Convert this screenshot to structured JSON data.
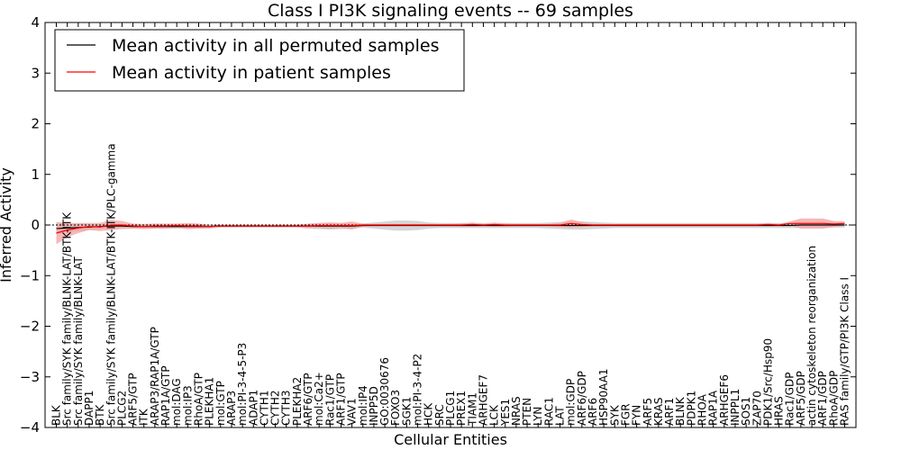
{
  "chart_data": {
    "type": "line",
    "title": "Class I PI3K signaling events -- 69 samples",
    "xlabel": "Cellular Entities",
    "ylabel": "Inferred Activity",
    "ylim": [
      -4,
      4
    ],
    "yticks": [
      -4,
      -3,
      -2,
      -1,
      0,
      1,
      2,
      3,
      4
    ],
    "ytick_labels": [
      "−4",
      "−3",
      "−2",
      "−1",
      "0",
      "1",
      "2",
      "3",
      "4"
    ],
    "grid": false,
    "legend_position": "top-left",
    "categories": [
      "BLK",
      "Src family/SYK family/BLNK-LAT/BTK-ITK",
      "Src family/SYK family/BLNK-LAT",
      "DAPP1",
      "BTK",
      "Src family/SYK family/BLNK-LAT/BTK-ITK/PLC-gamma",
      "PLCG2",
      "ARF5/GTP",
      "ITK",
      "ARAP3/RAP1A/GTP",
      "RAP1A/GTP",
      "mol:DAG",
      "mol:IP3",
      "RhoA/GTP",
      "PLEKHA1",
      "mol:GTP",
      "ARAP3",
      "mol:PI-3-4-5-P3",
      "ADAP1",
      "CYTH1",
      "CYTH2",
      "CYTH3",
      "PLEKHA2",
      "ARF6/GTP",
      "mol:Ca2+",
      "Rac1/GTP",
      "ARF1/GTP",
      "VAV1",
      "mol:IP4",
      "INPP5D",
      "GO:0030676",
      "FOXO3",
      "SGK1",
      "mol:PI-3-4-P2",
      "HCK",
      "SRC",
      "PLCG1",
      "PREX1",
      "TIAM1",
      "ARHGEF7",
      "LCK",
      "YES1",
      "NRAS",
      "PTEN",
      "LYN",
      "RAC1",
      "LAT",
      "mol:GDP",
      "ARF6/GDP",
      "ARF6",
      "HSP90AA1",
      "SYK",
      "FGR",
      "FYN",
      "ARF5",
      "KRAS",
      "ARF1",
      "BLNK",
      "PDPK1",
      "RHOA",
      "RAP1A",
      "ARHGEF6",
      "INPPL1",
      "SOS1",
      "ZAP70",
      "PDK1/Src/Hsp90",
      "HRAS",
      "Rac1/GDP",
      "ARF5/GDP",
      "actin cytoskeleton reorganization",
      "ARF1/GDP",
      "RhoA/GDP",
      "RAS family/GTP/PI3K Class I"
    ],
    "series": [
      {
        "name": "Mean activity in all permuted samples",
        "color": "#000000",
        "band_color": "#c8c8c8",
        "values": [
          -0.07,
          -0.06,
          -0.05,
          -0.04,
          -0.03,
          -0.02,
          -0.02,
          -0.03,
          -0.03,
          -0.03,
          -0.03,
          -0.03,
          -0.03,
          -0.03,
          -0.03,
          -0.02,
          -0.02,
          -0.02,
          -0.02,
          -0.02,
          -0.02,
          -0.02,
          -0.02,
          -0.02,
          -0.02,
          -0.02,
          -0.02,
          -0.02,
          -0.01,
          -0.01,
          -0.01,
          -0.01,
          -0.01,
          -0.01,
          -0.01,
          -0.01,
          -0.01,
          -0.01,
          -0.01,
          -0.01,
          -0.01,
          -0.01,
          -0.01,
          -0.01,
          -0.01,
          -0.01,
          -0.01,
          -0.01,
          -0.01,
          -0.01,
          -0.01,
          -0.01,
          -0.01,
          -0.01,
          -0.01,
          -0.01,
          -0.01,
          -0.01,
          -0.01,
          -0.01,
          -0.01,
          -0.01,
          -0.01,
          -0.01,
          -0.01,
          -0.01,
          -0.01,
          -0.01,
          0.0,
          0.0,
          0.0,
          0.0,
          0.0
        ],
        "band_halfwidth": [
          0.1,
          0.08,
          0.07,
          0.06,
          0.05,
          0.04,
          0.04,
          0.04,
          0.04,
          0.04,
          0.04,
          0.04,
          0.04,
          0.04,
          0.04,
          0.03,
          0.03,
          0.03,
          0.03,
          0.03,
          0.03,
          0.03,
          0.03,
          0.05,
          0.06,
          0.07,
          0.06,
          0.05,
          0.04,
          0.06,
          0.08,
          0.1,
          0.1,
          0.09,
          0.06,
          0.05,
          0.05,
          0.05,
          0.05,
          0.05,
          0.05,
          0.05,
          0.05,
          0.05,
          0.05,
          0.06,
          0.07,
          0.08,
          0.08,
          0.07,
          0.06,
          0.05,
          0.05,
          0.05,
          0.05,
          0.05,
          0.05,
          0.05,
          0.05,
          0.05,
          0.05,
          0.05,
          0.05,
          0.05,
          0.05,
          0.05,
          0.05,
          0.05,
          0.06,
          0.06,
          0.06,
          0.05,
          0.05
        ]
      },
      {
        "name": "Mean activity in patient samples",
        "color": "#ff0000",
        "band_color": "#f4a0a0",
        "values": [
          -0.16,
          -0.1,
          -0.06,
          -0.03,
          -0.04,
          0.0,
          0.0,
          -0.02,
          -0.03,
          -0.02,
          -0.02,
          -0.01,
          -0.02,
          -0.02,
          -0.03,
          -0.02,
          -0.02,
          -0.02,
          -0.02,
          -0.02,
          -0.02,
          -0.02,
          -0.02,
          -0.02,
          -0.01,
          -0.01,
          -0.01,
          -0.01,
          0.0,
          0.0,
          0.0,
          0.0,
          0.0,
          0.0,
          0.0,
          0.0,
          0.0,
          0.0,
          0.01,
          0.0,
          0.01,
          0.0,
          0.0,
          0.0,
          0.0,
          0.0,
          0.0,
          0.03,
          0.01,
          0.0,
          0.0,
          0.0,
          0.0,
          0.0,
          0.0,
          0.0,
          0.0,
          0.0,
          0.0,
          0.0,
          0.0,
          0.0,
          0.0,
          0.0,
          0.0,
          0.01,
          0.0,
          0.03,
          0.03,
          0.03,
          0.03,
          0.02,
          0.03
        ],
        "band_halfwidth": [
          0.22,
          0.14,
          0.1,
          0.07,
          0.08,
          0.1,
          0.08,
          0.05,
          0.05,
          0.05,
          0.05,
          0.04,
          0.06,
          0.05,
          0.03,
          0.02,
          0.02,
          0.02,
          0.02,
          0.02,
          0.02,
          0.02,
          0.02,
          0.04,
          0.05,
          0.06,
          0.05,
          0.08,
          0.03,
          0.02,
          0.02,
          0.02,
          0.02,
          0.02,
          0.02,
          0.02,
          0.02,
          0.03,
          0.04,
          0.02,
          0.04,
          0.03,
          0.02,
          0.02,
          0.02,
          0.02,
          0.04,
          0.08,
          0.05,
          0.02,
          0.02,
          0.02,
          0.02,
          0.02,
          0.02,
          0.02,
          0.02,
          0.02,
          0.02,
          0.02,
          0.02,
          0.02,
          0.02,
          0.02,
          0.02,
          0.03,
          0.02,
          0.04,
          0.1,
          0.1,
          0.1,
          0.06,
          0.04
        ]
      }
    ]
  }
}
